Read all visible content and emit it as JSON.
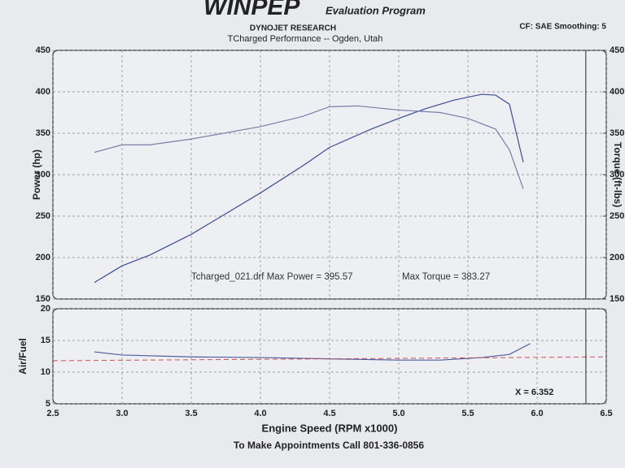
{
  "header": {
    "brand": "WINPEP",
    "program": "Evaluation Program",
    "settings": "CF: SAE  Smoothing: 5",
    "company": "DYNOJET RESEARCH",
    "shop": "TCharged Performance -- Ogden, Utah",
    "footer": "To Make Appointments Call 801-336-0856"
  },
  "chart_data": [
    {
      "type": "line",
      "ylabel": "Power (hp)",
      "y2label": "Torque (ft-lbs)",
      "annotations": [
        "Tcharged_021.drf Max Power = 395.57",
        "Max Torque = 383.27"
      ],
      "xlim": [
        2.5,
        6.5
      ],
      "ylim": [
        150,
        450
      ],
      "yticks": [
        150,
        200,
        250,
        300,
        350,
        400,
        450
      ],
      "y2lim": [
        150,
        450
      ],
      "y2ticks": [
        150,
        200,
        250,
        300,
        350,
        400,
        450
      ],
      "xticks": [
        2.5,
        {
          "value": 3,
          "label": "3.0"
        },
        3.5,
        {
          "value": 4,
          "label": "4.0"
        },
        4.5,
        {
          "value": 5,
          "label": "5.0"
        },
        5.5,
        {
          "value": 6,
          "label": "6.0"
        },
        6.5
      ],
      "grid": true,
      "cursor": 6.352,
      "series": [
        {
          "color": "#3e4c94",
          "x": [
            2.8,
            3.0,
            3.2,
            3.5,
            3.8,
            4.0,
            4.3,
            4.5,
            4.8,
            5.0,
            5.2,
            5.4,
            5.6,
            5.7,
            5.8,
            5.85,
            5.9
          ],
          "values": [
            170,
            190,
            203,
            228,
            258,
            278,
            310,
            333,
            355,
            368,
            380,
            390,
            397,
            396,
            385,
            350,
            315
          ]
        },
        {
          "color": "#7a7ea8",
          "axis": "y2",
          "x": [
            2.8,
            3.0,
            3.2,
            3.5,
            4.0,
            4.3,
            4.5,
            4.7,
            5.0,
            5.3,
            5.5,
            5.7,
            5.8,
            5.9
          ],
          "values": [
            327,
            336,
            336,
            343,
            358,
            370,
            382,
            383,
            378,
            375,
            368,
            355,
            330,
            283
          ]
        }
      ]
    },
    {
      "type": "line",
      "ylabel": "Air/Fuel",
      "xlabel": "Engine Speed (RPM x1000)",
      "annotations": [
        "X = 6.352"
      ],
      "cursor": 6.352,
      "xlim": [
        2.5,
        6.5
      ],
      "ylim": [
        5,
        20
      ],
      "yticks": [
        5,
        10,
        15,
        20
      ],
      "xticks": [
        2.5,
        {
          "value": 3,
          "label": "3.0"
        },
        3.5,
        {
          "value": 4,
          "label": "4.0"
        },
        4.5,
        {
          "value": 5,
          "label": "5.0"
        },
        5.5,
        {
          "value": 6,
          "label": "6.0"
        },
        6.5
      ],
      "grid": true,
      "series": [
        {
          "color": "#4d5ca0",
          "x": [
            2.8,
            3.0,
            3.5,
            4.0,
            4.5,
            5.0,
            5.3,
            5.6,
            5.8,
            5.95
          ],
          "values": [
            13.2,
            12.7,
            12.4,
            12.3,
            12.1,
            11.9,
            11.9,
            12.3,
            12.8,
            14.5
          ]
        },
        {
          "color": "#d05050",
          "dash": true,
          "x": [
            2.5,
            6.5
          ],
          "values": [
            11.8,
            12.4
          ]
        }
      ]
    }
  ]
}
